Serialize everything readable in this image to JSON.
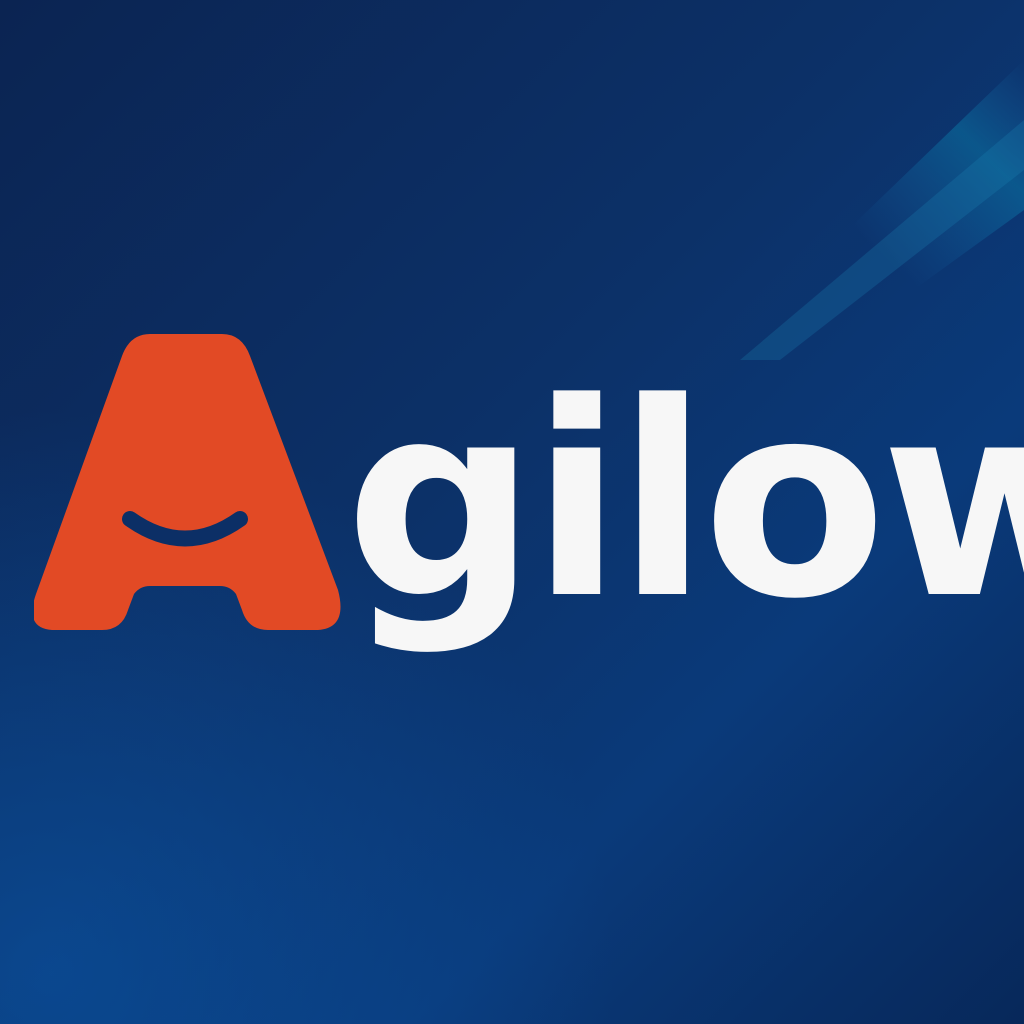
{
  "logo": {
    "initial": "A",
    "rest": "gilow",
    "accent_color": "#e24a25",
    "text_color": "#f7f7f7"
  },
  "background": {
    "colors": [
      "#0b2452",
      "#0a3a7a",
      "#0a6a9a"
    ]
  }
}
